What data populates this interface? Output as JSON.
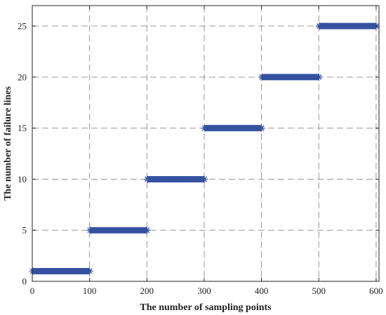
{
  "chart_data": {
    "type": "scatter",
    "xlabel": "The number of sampling points",
    "ylabel": "The number of failure lines",
    "xlim": [
      0,
      605
    ],
    "ylim": [
      0,
      27
    ],
    "xticks": [
      0,
      100,
      200,
      300,
      400,
      500,
      600
    ],
    "yticks": [
      0,
      5,
      10,
      15,
      20,
      25
    ],
    "grid": true,
    "legend": "none",
    "series": [
      {
        "marker": "star",
        "color": "#3552a0",
        "segments": [
          {
            "x_start": 1,
            "x_end": 100,
            "y": 1
          },
          {
            "x_start": 101,
            "x_end": 200,
            "y": 5
          },
          {
            "x_start": 201,
            "x_end": 300,
            "y": 10
          },
          {
            "x_start": 301,
            "x_end": 400,
            "y": 15
          },
          {
            "x_start": 401,
            "x_end": 500,
            "y": 20
          },
          {
            "x_start": 501,
            "x_end": 600,
            "y": 25
          }
        ]
      }
    ]
  }
}
